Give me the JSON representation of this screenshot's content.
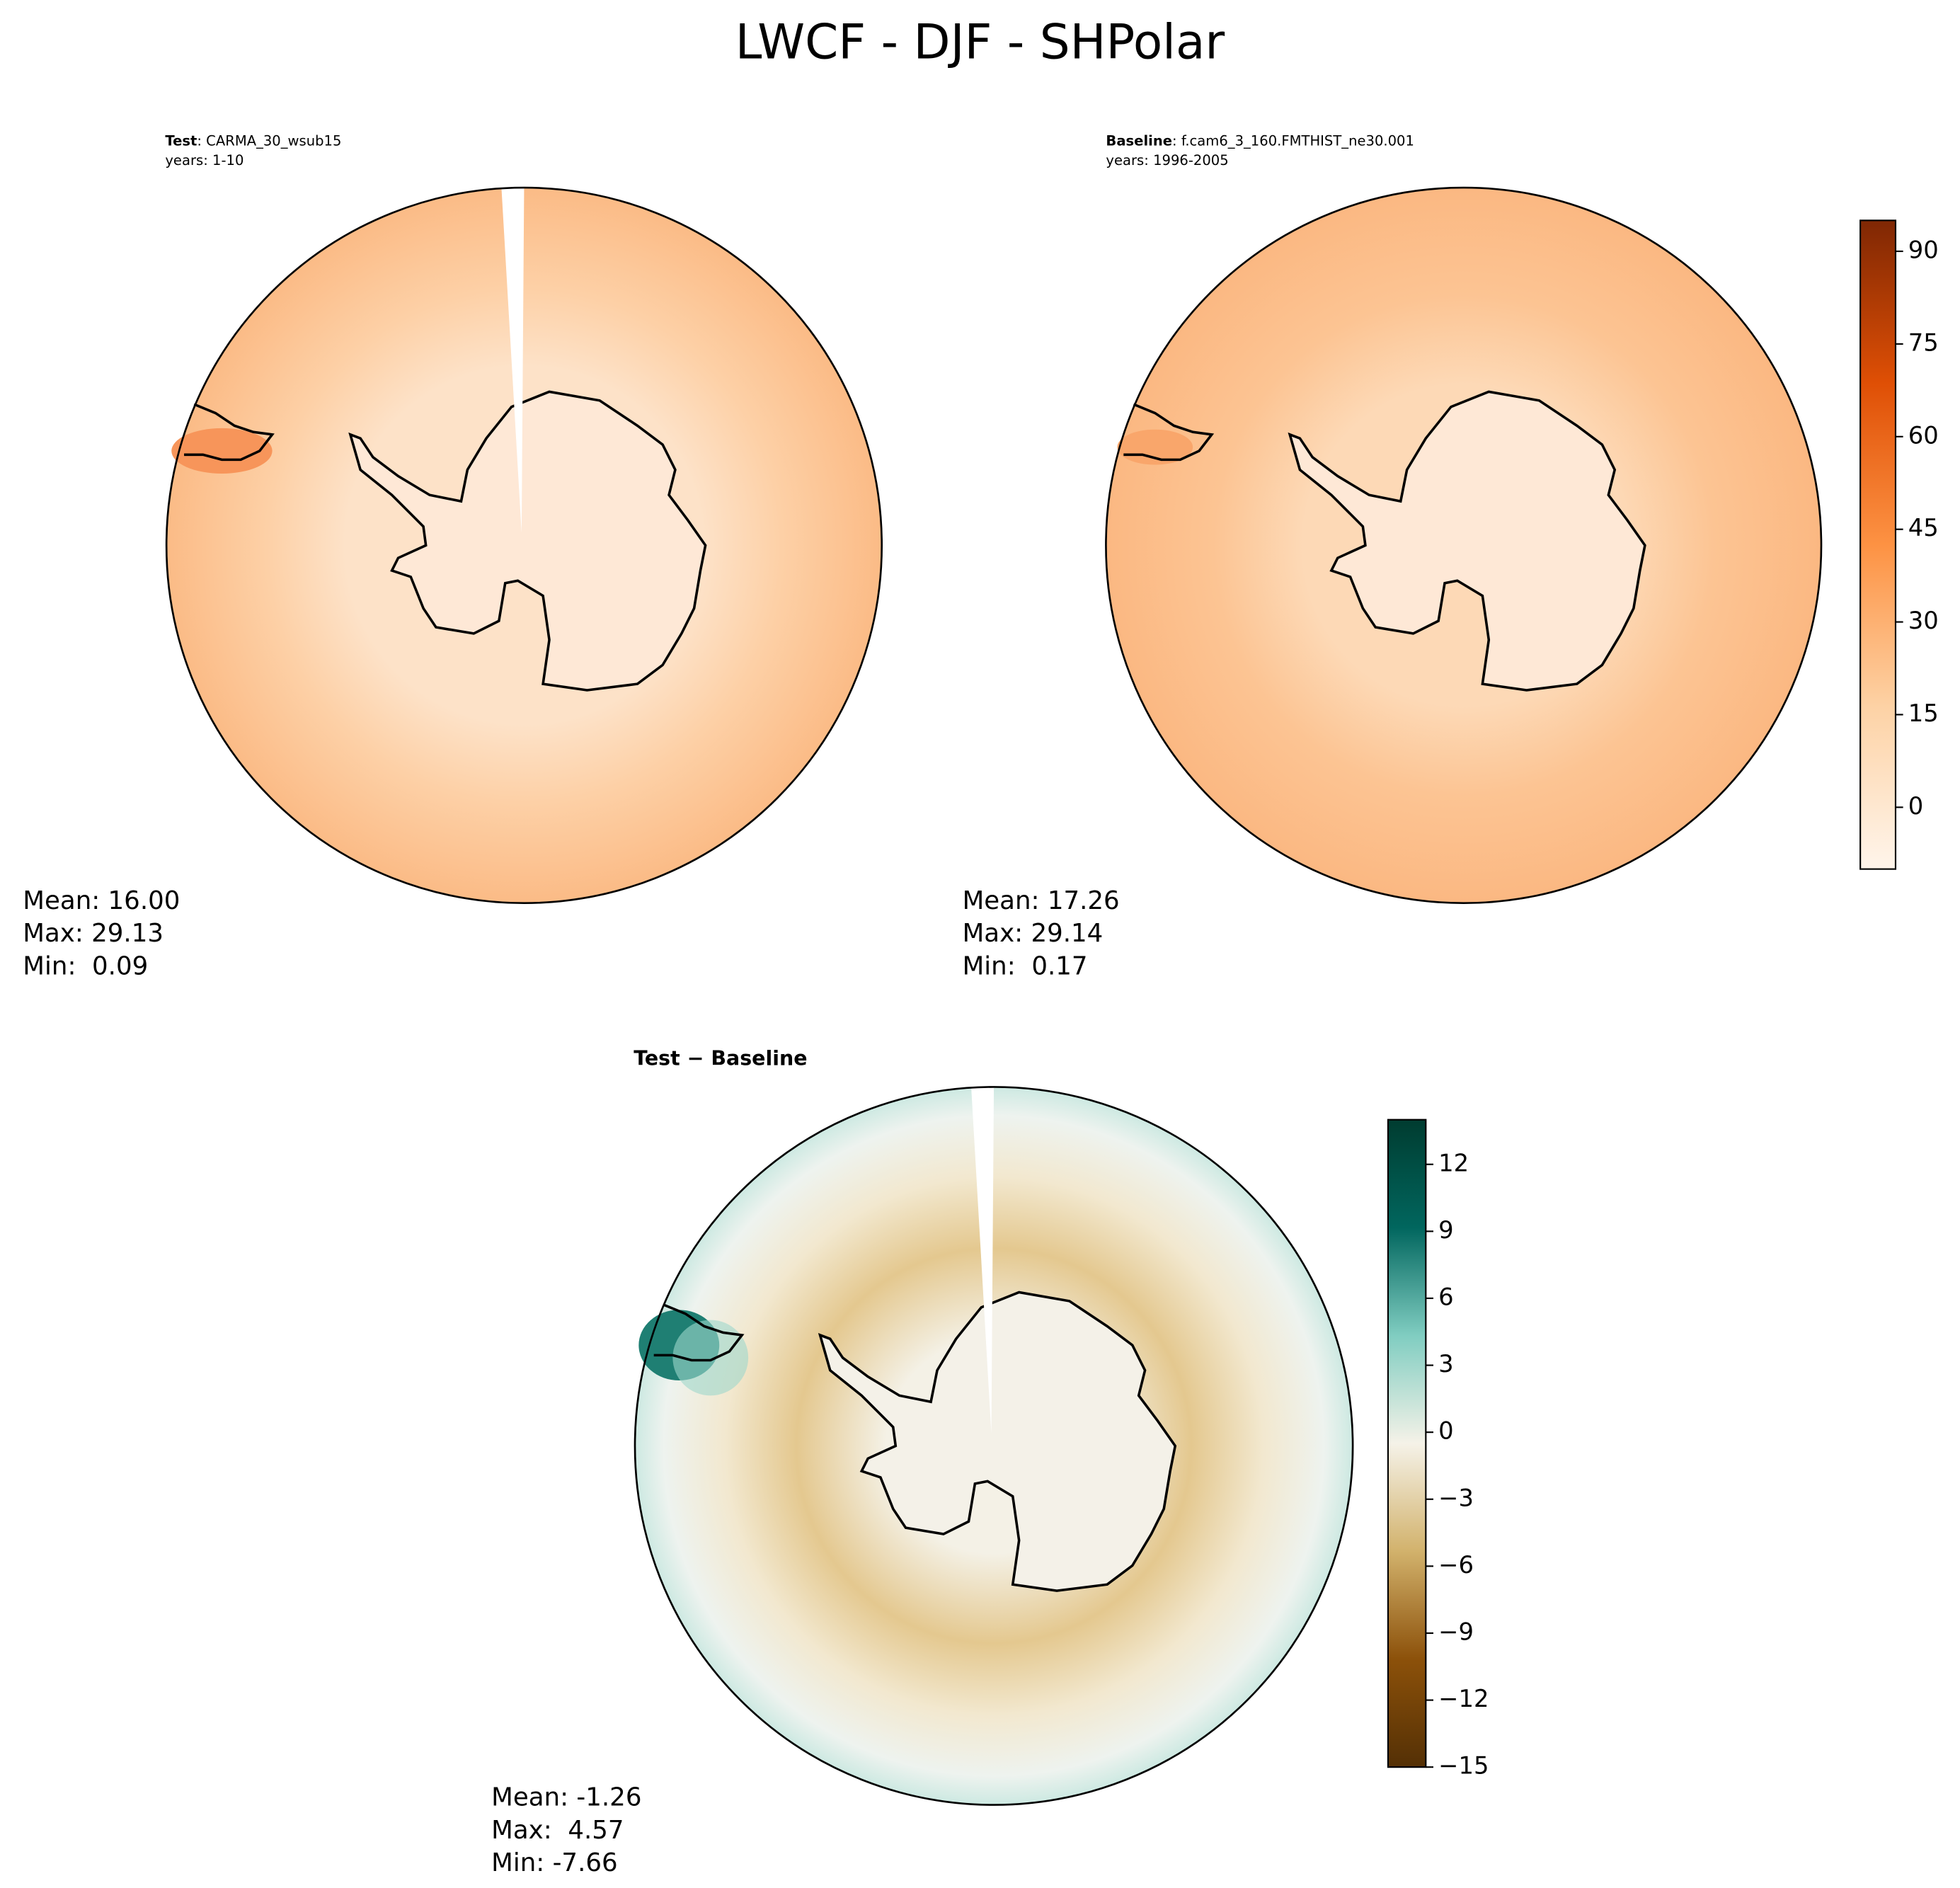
{
  "title": "LWCF - DJF - SHPolar",
  "panels": [
    {
      "bold": "Test",
      "case": ": CARMA_30_wsub15",
      "years": "years: 1-10",
      "stats": [
        "Mean: 16.00",
        "Max: 29.13",
        "Min:  0.09"
      ]
    },
    {
      "bold": "Baseline",
      "case": ": f.cam6_3_160.FMTHIST_ne30.001",
      "years": "years: 1996-2005",
      "stats": [
        "Mean: 17.26",
        "Max: 29.14",
        "Min:  0.17"
      ]
    },
    {
      "bold": "Test",
      "case": " − Baseline",
      "stats": [
        "Mean: -1.26",
        "Max:  4.57",
        "Min: -7.66"
      ]
    }
  ],
  "colorbars": [
    {
      "lim": [
        -10,
        95
      ],
      "ticks": [
        0,
        15,
        30,
        45,
        60,
        75,
        90
      ],
      "colors": [
        "#fff5eb",
        "#fdd2a5",
        "#fd9243",
        "#df4f05",
        "#7f2704"
      ]
    },
    {
      "lim": [
        -15,
        14
      ],
      "ticks": [
        {
          "value": -15,
          "label": "−15"
        },
        {
          "value": -12,
          "label": "−12"
        },
        {
          "value": -9,
          "label": "−9"
        },
        {
          "value": -6,
          "label": "−6"
        },
        {
          "value": -3,
          "label": "−3"
        },
        0,
        3,
        6,
        9,
        12
      ],
      "colors": [
        "#543005",
        "#8c510a",
        "#d2b26c",
        "#f5f2e8",
        "#80cdc1",
        "#01665e",
        "#003c30"
      ]
    }
  ]
}
